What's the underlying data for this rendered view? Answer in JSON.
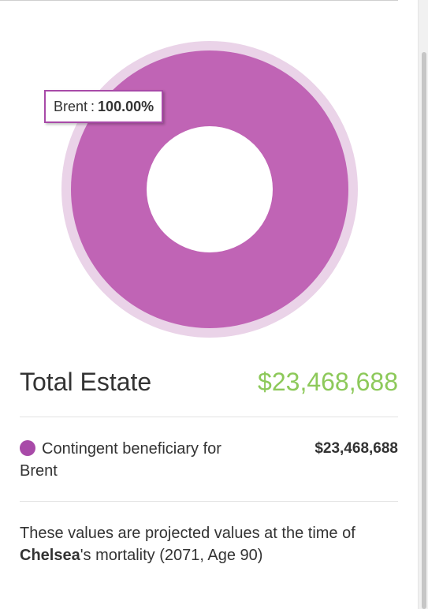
{
  "chart_data": {
    "type": "pie",
    "categories": [
      "Brent"
    ],
    "values": [
      100.0
    ],
    "colors": {
      "slice": "#c064b5",
      "outer_ring": "#ead3e8",
      "hole": "#ffffff"
    },
    "tooltip": {
      "label": "Brent",
      "separator": ":",
      "value": "100.00%"
    }
  },
  "summary": {
    "total_label": "Total Estate",
    "total_value": "$23,468,688",
    "total_color": "#8dc95a"
  },
  "beneficiaries": [
    {
      "label": "Contingent beneficiary for Brent",
      "amount": "$23,468,688",
      "dot_color": "#a84aa8"
    }
  ],
  "note": {
    "prefix": "These values are projected values at the time of ",
    "name": "Chelsea",
    "suffix": "'s mortality (2071, Age 90)"
  }
}
